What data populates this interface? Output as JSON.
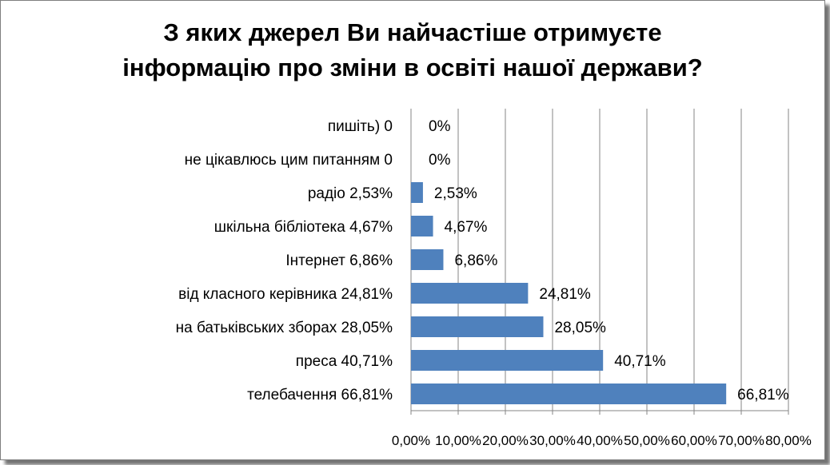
{
  "chart_data": {
    "type": "bar",
    "orientation": "horizontal",
    "title_lines": [
      "З яких джерел Ви найчастіше отримуєте",
      "інформацію про зміни в освіті нашої держави?"
    ],
    "categories": [
      "пишіть) 0",
      "не цікавлюсь цим питанням 0",
      "радіо 2,53%",
      "шкільна бібліотека 4,67%",
      "Інтернет 6,86%",
      "від класного керівника 24,81%",
      "на батьківських зборах 28,05%",
      "преса 40,71%",
      "телебачення 66,81%"
    ],
    "values": [
      0,
      0,
      2.53,
      4.67,
      6.86,
      24.81,
      28.05,
      40.71,
      66.81
    ],
    "data_labels": [
      "0%",
      "0%",
      "2,53%",
      "4,67%",
      "6,86%",
      "24,81%",
      "28,05%",
      "40,71%",
      "66,81%"
    ],
    "x_ticks": [
      "0,00%",
      "10,00%",
      "20,00%",
      "30,00%",
      "40,00%",
      "50,00%",
      "60,00%",
      "70,00%",
      "80,00%"
    ],
    "xlim": [
      0,
      80
    ],
    "grid": "vertical",
    "legend": "none",
    "bar_color": "#4f81bd",
    "grid_color": "#868686"
  }
}
